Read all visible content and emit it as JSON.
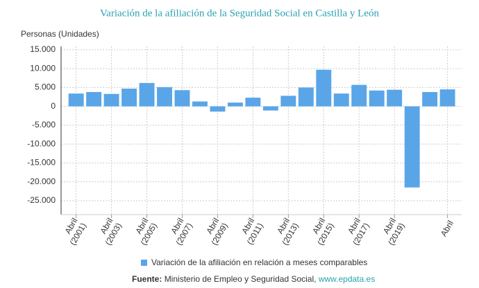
{
  "chart_data": {
    "type": "bar",
    "title": "Variación de la afiliación de la Seguridad Social en Castilla y León",
    "y_label": "Personas (Unidades)",
    "categories": [
      "Abril (2001)",
      null,
      "Abril (2003)",
      null,
      "Abril (2005)",
      null,
      "Abril (2007)",
      null,
      "Abril (2009)",
      null,
      "Abril (2011)",
      null,
      "Abril (2013)",
      null,
      "Abril (2015)",
      null,
      "Abril (2017)",
      null,
      "Abril (2019)",
      null,
      null,
      "Abril"
    ],
    "series": [
      {
        "name": "Variación de la afiliación en relación a meses comparables",
        "color": "#5aa5e8",
        "values": [
          3400,
          3800,
          3300,
          4700,
          6200,
          5100,
          4300,
          1300,
          -1400,
          1000,
          2300,
          -1100,
          2800,
          5000,
          9700,
          3400,
          5700,
          4200,
          4400,
          -21500,
          3800,
          4500
        ]
      }
    ],
    "ylim": [
      -28700,
      15900
    ],
    "yticks": [
      {
        "value": 15000,
        "label": "15.000"
      },
      {
        "value": 10000,
        "label": "10.000"
      },
      {
        "value": 5000,
        "label": "5.000"
      },
      0,
      {
        "value": -5000,
        "label": "-5.000"
      },
      {
        "value": -10000,
        "label": "-10.000"
      },
      {
        "value": -15000,
        "label": "-15.000"
      },
      {
        "value": -20000,
        "label": "-20.000"
      },
      {
        "value": -25000,
        "label": "-25.000"
      }
    ],
    "grid": true,
    "source": {
      "label": "Fuente:",
      "text": "Ministerio de Empleo y Seguridad Social,",
      "link": "www.epdata.es"
    }
  }
}
